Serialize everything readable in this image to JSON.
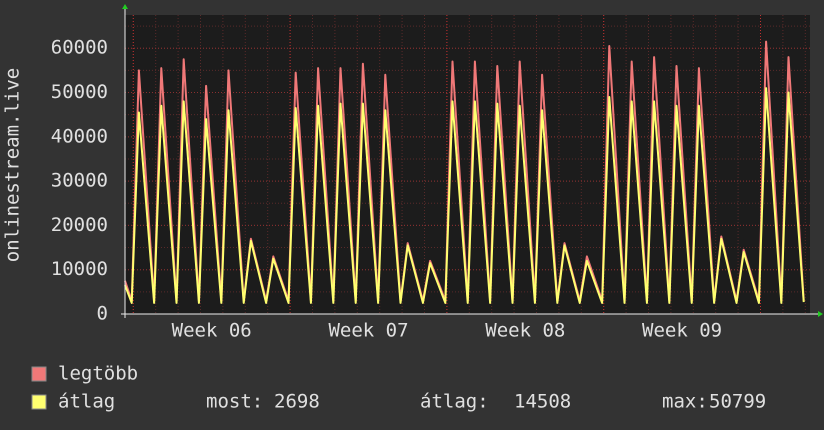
{
  "chart_data": {
    "type": "line",
    "y_label": "onlinestream.live",
    "x": [
      0,
      0.3,
      0.62,
      1.3,
      1.62,
      2.3,
      2.62,
      3.3,
      3.62,
      4.3,
      4.62,
      5.3,
      5.62,
      6.3,
      6.62,
      7.3,
      7.62,
      8.3,
      8.62,
      9.3,
      9.62,
      10.3,
      10.62,
      11.3,
      11.62,
      12.3,
      12.62,
      13.3,
      13.62,
      14.3,
      14.62,
      15.3,
      15.62,
      16.3,
      16.62,
      17.3,
      17.62,
      18.3,
      18.62,
      19.3,
      19.62,
      20.3,
      20.62,
      21.3,
      21.62,
      22.3,
      22.62,
      23.3,
      23.62,
      24.3,
      24.62,
      25.3,
      25.62,
      26.3,
      26.62,
      27.3,
      27.62,
      28.3,
      28.62,
      29.3,
      29.62,
      30.3
    ],
    "series": [
      {
        "name": "legtöbb",
        "color": "#f07878",
        "values": [
          7500,
          3000,
          55000,
          3000,
          55500,
          3000,
          57500,
          3000,
          51500,
          3000,
          55000,
          3000,
          17000,
          3000,
          13000,
          3000,
          54500,
          3000,
          55500,
          3000,
          55500,
          3000,
          56500,
          3000,
          54000,
          3000,
          16000,
          3000,
          12000,
          3000,
          57000,
          3000,
          57000,
          3000,
          56000,
          3000,
          57000,
          3000,
          54000,
          3000,
          16000,
          3000,
          13000,
          3000,
          60500,
          3000,
          57000,
          3000,
          58000,
          3000,
          56000,
          3000,
          55500,
          3000,
          17500,
          3000,
          14500,
          3000,
          61500,
          3000,
          58000,
          3000
        ]
      },
      {
        "name": "átlag",
        "color": "#ffff70",
        "values": [
          6500,
          2500,
          45500,
          2500,
          47000,
          2500,
          48000,
          2500,
          44000,
          2500,
          46000,
          2500,
          16500,
          2500,
          12500,
          2500,
          46500,
          2500,
          47000,
          2500,
          47500,
          2500,
          47500,
          2500,
          46000,
          2500,
          15500,
          2500,
          11500,
          2500,
          48000,
          2500,
          48000,
          2500,
          47500,
          2500,
          47000,
          2500,
          46000,
          2500,
          15500,
          2500,
          12000,
          2500,
          49000,
          2500,
          48000,
          2500,
          48000,
          2500,
          47000,
          2500,
          47000,
          2500,
          17000,
          2500,
          14000,
          2500,
          51000,
          2500,
          50000,
          2698
        ]
      }
    ],
    "xlim": [
      0,
      30.58
    ],
    "ylim": [
      0,
      67500
    ],
    "yticks": [
      0,
      10000,
      20000,
      30000,
      40000,
      50000,
      60000
    ],
    "xticks": [
      0.37,
      7.37,
      14.37,
      21.37,
      28.37
    ],
    "xlabels": [
      {
        "value": 3.87,
        "label": "Week 06"
      },
      {
        "value": 10.87,
        "label": "Week 07"
      },
      {
        "value": 17.87,
        "label": "Week 08"
      },
      {
        "value": 24.87,
        "label": "Week 09"
      }
    ],
    "grid": true,
    "legend_stats": [
      {
        "label": "most:",
        "value": 2698
      },
      {
        "label": "átlag:",
        "value": 14508
      },
      {
        "label": "max:",
        "value": 50799
      }
    ]
  }
}
